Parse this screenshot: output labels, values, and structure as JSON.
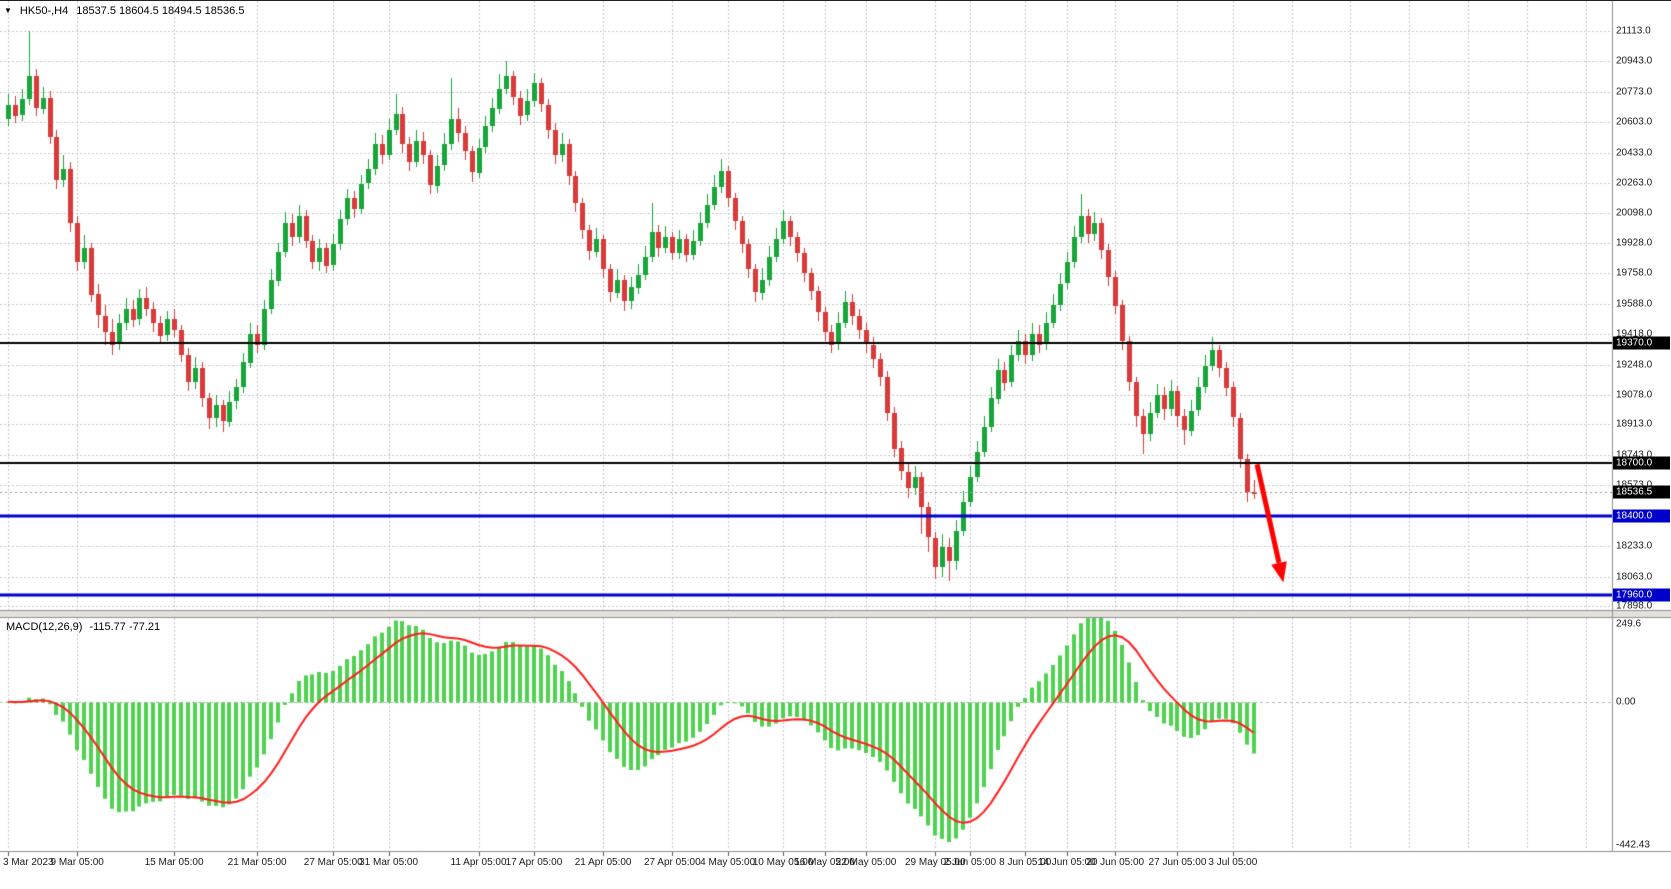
{
  "header": {
    "symbol": "HK50-,H4",
    "quote": "18537.5 18604.5 18494.5 18536.5",
    "dropdown_icon": "▼"
  },
  "macd": {
    "label": "MACD(12,26,9)",
    "values_text": "-115.77 -77.21"
  },
  "colors": {
    "background": "#ffffff",
    "grid": "#c8c8c8",
    "bull": "#18a53a",
    "bear": "#d93a3a",
    "macd_histogram": "#4fd24f",
    "macd_signal": "#ff1e1e",
    "level_black": "#000000",
    "level_blue": "#0000cc",
    "axis_text": "#1a1a1a",
    "separator": "#8f8f8f",
    "separator_fill": "#e4e1dc",
    "current_price_line": "#9a9a9a",
    "arrow": "#ff0000"
  },
  "chart_data": {
    "type": "candlestick",
    "symbol": "HK50",
    "timeframe": "H4",
    "current_bar": {
      "open": 18537.5,
      "high": 18604.5,
      "low": 18494.5,
      "close": 18536.5
    },
    "y_ticks": [
      {
        "value": 21113.0,
        "label": "21113.0"
      },
      {
        "value": 20943.0,
        "label": "20943.0"
      },
      {
        "value": 20773.0,
        "label": "20773.0"
      },
      {
        "value": 20603.0,
        "label": "20603.0"
      },
      {
        "value": 20433.0,
        "label": "20433.0"
      },
      {
        "value": 20263.0,
        "label": "20263.0"
      },
      {
        "value": 20098.0,
        "label": "20098.0"
      },
      {
        "value": 19928.0,
        "label": "19928.0"
      },
      {
        "value": 19758.0,
        "label": "19758.0"
      },
      {
        "value": 19588.0,
        "label": "19588.0"
      },
      {
        "value": 19418.0,
        "label": "19418.0"
      },
      {
        "value": 19248.0,
        "label": "19248.0"
      },
      {
        "value": 19078.0,
        "label": "19078.0"
      },
      {
        "value": 18913.0,
        "label": "18913.0"
      },
      {
        "value": 18743.0,
        "label": "18743.0"
      },
      {
        "value": 18573.0,
        "label": "18573.0"
      },
      {
        "value": 18403.0,
        "label": "18403.0"
      },
      {
        "value": 18233.0,
        "label": "18233.0"
      },
      {
        "value": 18063.0,
        "label": "18063.0"
      },
      {
        "value": 17898.0,
        "label": "17898.0"
      }
    ],
    "macd_ticks": [
      {
        "value": 249.6,
        "label": "249.6"
      },
      {
        "value": 0,
        "label": "0.00"
      },
      {
        "value": -442.43,
        "label": "-442.43"
      }
    ],
    "x_labels": [
      {
        "bar": 0,
        "label": "3 Mar 2023"
      },
      {
        "bar": 10,
        "label": "9 Mar 05:00"
      },
      {
        "bar": 24,
        "label": "15 Mar 05:00"
      },
      {
        "bar": 36,
        "label": "21 Mar 05:00"
      },
      {
        "bar": 47,
        "label": "27 Mar 05:00"
      },
      {
        "bar": 55,
        "label": "31 Mar 05:00"
      },
      {
        "bar": 68,
        "label": "11 Apr 05:00"
      },
      {
        "bar": 76,
        "label": "17 Apr 05:00"
      },
      {
        "bar": 86,
        "label": "21 Apr 05:00"
      },
      {
        "bar": 96,
        "label": "27 Apr 05:00"
      },
      {
        "bar": 104,
        "label": "4 May 05:00"
      },
      {
        "bar": 112,
        "label": "10 May 05:00"
      },
      {
        "bar": 118,
        "label": "16 May 05:00"
      },
      {
        "bar": 124,
        "label": "22 May 05:00"
      },
      {
        "bar": 134,
        "label": "29 May 05:00"
      },
      {
        "bar": 139,
        "label": "2 Jun 05:00"
      },
      {
        "bar": 147,
        "label": "8 Jun 05:00"
      },
      {
        "bar": 153,
        "label": "14 Jun 05:00"
      },
      {
        "bar": 160,
        "label": "20 Jun 05:00"
      },
      {
        "bar": 169,
        "label": "27 Jun 05:00"
      },
      {
        "bar": 177,
        "label": "3 Jul 05:00"
      }
    ],
    "indicator": {
      "name": "MACD",
      "fast": 12,
      "slow": 26,
      "signal_period": 9,
      "current_macd": -115.77,
      "current_signal": -77.21,
      "axis_max": 249.6,
      "axis_min": -442.43
    },
    "horizontal_levels": [
      {
        "price": 19370.0,
        "label": "19370.0",
        "style": "black"
      },
      {
        "price": 18700.0,
        "label": "18700.0",
        "style": "black"
      },
      {
        "price": 18400.0,
        "label": "18400.0",
        "style": "blue"
      },
      {
        "price": 17960.0,
        "label": "17960.0",
        "style": "blue"
      }
    ],
    "current_price": {
      "value": 18536.5,
      "label": "18536.5"
    },
    "trend_arrow": {
      "start_bar": 180.5,
      "start_price": 18690,
      "end_bar": 184.3,
      "end_price": 18030
    },
    "candles": [
      [
        20620,
        20760,
        20580,
        20700
      ],
      [
        20700,
        20750,
        20600,
        20640
      ],
      [
        20640,
        20790,
        20610,
        20730
      ],
      [
        20730,
        21113,
        20700,
        20860
      ],
      [
        20860,
        20900,
        20640,
        20680
      ],
      [
        20680,
        20800,
        20650,
        20740
      ],
      [
        20740,
        20780,
        20480,
        20520
      ],
      [
        20520,
        20560,
        20230,
        20280
      ],
      [
        20280,
        20420,
        20240,
        20340
      ],
      [
        20340,
        20380,
        19990,
        20040
      ],
      [
        20040,
        20080,
        19770,
        19820
      ],
      [
        19820,
        19970,
        19780,
        19900
      ],
      [
        19900,
        19930,
        19600,
        19640
      ],
      [
        19640,
        19700,
        19450,
        19520
      ],
      [
        19520,
        19580,
        19360,
        19430
      ],
      [
        19430,
        19500,
        19300,
        19360
      ],
      [
        19360,
        19530,
        19330,
        19480
      ],
      [
        19480,
        19620,
        19440,
        19560
      ],
      [
        19560,
        19610,
        19460,
        19500
      ],
      [
        19500,
        19670,
        19470,
        19620
      ],
      [
        19620,
        19680,
        19520,
        19560
      ],
      [
        19560,
        19600,
        19430,
        19480
      ],
      [
        19480,
        19520,
        19370,
        19410
      ],
      [
        19410,
        19550,
        19380,
        19500
      ],
      [
        19500,
        19560,
        19400,
        19440
      ],
      [
        19440,
        19470,
        19260,
        19300
      ],
      [
        19300,
        19340,
        19100,
        19150
      ],
      [
        19150,
        19290,
        19110,
        19230
      ],
      [
        19230,
        19260,
        19010,
        19060
      ],
      [
        19060,
        19090,
        18890,
        18950
      ],
      [
        18950,
        19080,
        18900,
        19020
      ],
      [
        19020,
        19050,
        18870,
        18930
      ],
      [
        18930,
        19100,
        18900,
        19040
      ],
      [
        19040,
        19170,
        19000,
        19120
      ],
      [
        19120,
        19310,
        19090,
        19260
      ],
      [
        19260,
        19480,
        19230,
        19420
      ],
      [
        19420,
        19470,
        19310,
        19360
      ],
      [
        19360,
        19610,
        19330,
        19560
      ],
      [
        19560,
        19780,
        19530,
        19720
      ],
      [
        19720,
        19930,
        19690,
        19880
      ],
      [
        19880,
        20100,
        19850,
        20040
      ],
      [
        20040,
        20090,
        19910,
        19960
      ],
      [
        19960,
        20140,
        19930,
        20080
      ],
      [
        20080,
        20110,
        19900,
        19940
      ],
      [
        19940,
        19970,
        19780,
        19820
      ],
      [
        19820,
        19950,
        19770,
        19900
      ],
      [
        19900,
        19930,
        19760,
        19800
      ],
      [
        19800,
        19980,
        19770,
        19920
      ],
      [
        19920,
        20110,
        19890,
        20060
      ],
      [
        20060,
        20230,
        20030,
        20180
      ],
      [
        20180,
        20220,
        20070,
        20120
      ],
      [
        20120,
        20310,
        20090,
        20260
      ],
      [
        20260,
        20400,
        20230,
        20340
      ],
      [
        20340,
        20540,
        20310,
        20480
      ],
      [
        20480,
        20530,
        20370,
        20420
      ],
      [
        20420,
        20620,
        20390,
        20560
      ],
      [
        20560,
        20760,
        20530,
        20650
      ],
      [
        20650,
        20690,
        20430,
        20480
      ],
      [
        20480,
        20520,
        20330,
        20380
      ],
      [
        20380,
        20560,
        20350,
        20500
      ],
      [
        20500,
        20550,
        20370,
        20420
      ],
      [
        20420,
        20450,
        20200,
        20250
      ],
      [
        20250,
        20420,
        20210,
        20360
      ],
      [
        20360,
        20540,
        20330,
        20480
      ],
      [
        20480,
        20850,
        20450,
        20620
      ],
      [
        20620,
        20680,
        20490,
        20540
      ],
      [
        20540,
        20580,
        20390,
        20440
      ],
      [
        20440,
        20470,
        20270,
        20320
      ],
      [
        20320,
        20510,
        20290,
        20460
      ],
      [
        20460,
        20640,
        20430,
        20580
      ],
      [
        20580,
        20740,
        20550,
        20680
      ],
      [
        20680,
        20870,
        20650,
        20790
      ],
      [
        20790,
        20943,
        20760,
        20860
      ],
      [
        20860,
        20890,
        20700,
        20740
      ],
      [
        20740,
        20780,
        20590,
        20640
      ],
      [
        20640,
        20790,
        20610,
        20720
      ],
      [
        20720,
        20880,
        20690,
        20820
      ],
      [
        20820,
        20850,
        20660,
        20700
      ],
      [
        20700,
        20730,
        20510,
        20560
      ],
      [
        20560,
        20600,
        20370,
        20420
      ],
      [
        20420,
        20540,
        20380,
        20480
      ],
      [
        20480,
        20510,
        20250,
        20300
      ],
      [
        20300,
        20330,
        20100,
        20150
      ],
      [
        20150,
        20180,
        19950,
        20000
      ],
      [
        20000,
        20030,
        19830,
        19880
      ],
      [
        19880,
        20010,
        19850,
        19950
      ],
      [
        19950,
        19970,
        19730,
        19780
      ],
      [
        19780,
        19810,
        19600,
        19650
      ],
      [
        19650,
        19780,
        19620,
        19720
      ],
      [
        19720,
        19750,
        19550,
        19600
      ],
      [
        19600,
        19740,
        19560,
        19680
      ],
      [
        19680,
        19810,
        19640,
        19750
      ],
      [
        19750,
        19910,
        19720,
        19850
      ],
      [
        19850,
        20150,
        19820,
        19990
      ],
      [
        19990,
        20030,
        19850,
        19900
      ],
      [
        19900,
        20020,
        19870,
        19960
      ],
      [
        19960,
        19990,
        19830,
        19870
      ],
      [
        19870,
        20000,
        19840,
        19950
      ],
      [
        19950,
        19980,
        19820,
        19860
      ],
      [
        19860,
        20000,
        19830,
        19940
      ],
      [
        19940,
        20100,
        19910,
        20040
      ],
      [
        20040,
        20200,
        20010,
        20140
      ],
      [
        20140,
        20310,
        20110,
        20240
      ],
      [
        20240,
        20400,
        20210,
        20330
      ],
      [
        20330,
        20360,
        20130,
        20180
      ],
      [
        20180,
        20210,
        20000,
        20050
      ],
      [
        20050,
        20080,
        19870,
        19920
      ],
      [
        19920,
        19950,
        19730,
        19780
      ],
      [
        19780,
        19810,
        19600,
        19650
      ],
      [
        19650,
        19790,
        19610,
        19720
      ],
      [
        19720,
        19910,
        19690,
        19850
      ],
      [
        19850,
        20010,
        19820,
        19950
      ],
      [
        19950,
        20110,
        19920,
        20050
      ],
      [
        20050,
        20080,
        19910,
        19960
      ],
      [
        19960,
        19990,
        19820,
        19870
      ],
      [
        19870,
        19900,
        19710,
        19760
      ],
      [
        19760,
        19790,
        19610,
        19660
      ],
      [
        19660,
        19690,
        19490,
        19540
      ],
      [
        19540,
        19570,
        19380,
        19430
      ],
      [
        19430,
        19470,
        19310,
        19360
      ],
      [
        19360,
        19540,
        19330,
        19480
      ],
      [
        19480,
        19660,
        19450,
        19600
      ],
      [
        19600,
        19640,
        19470,
        19520
      ],
      [
        19520,
        19560,
        19390,
        19440
      ],
      [
        19440,
        19480,
        19310,
        19360
      ],
      [
        19360,
        19400,
        19230,
        19280
      ],
      [
        19280,
        19310,
        19130,
        19180
      ],
      [
        19180,
        19210,
        18930,
        18980
      ],
      [
        18980,
        19010,
        18730,
        18780
      ],
      [
        18780,
        18820,
        18600,
        18650
      ],
      [
        18650,
        18700,
        18500,
        18560
      ],
      [
        18560,
        18680,
        18520,
        18620
      ],
      [
        18620,
        18650,
        18300,
        18450
      ],
      [
        18450,
        18480,
        18200,
        18280
      ],
      [
        18280,
        18310,
        18050,
        18120
      ],
      [
        18120,
        18300,
        18060,
        18230
      ],
      [
        18230,
        18280,
        18040,
        18150
      ],
      [
        18150,
        18380,
        18100,
        18320
      ],
      [
        18320,
        18540,
        18290,
        18480
      ],
      [
        18480,
        18680,
        18450,
        18620
      ],
      [
        18620,
        18820,
        18590,
        18760
      ],
      [
        18760,
        18960,
        18730,
        18900
      ],
      [
        18900,
        19120,
        18870,
        19060
      ],
      [
        19060,
        19280,
        19030,
        19220
      ],
      [
        19220,
        19260,
        19100,
        19150
      ],
      [
        19150,
        19360,
        19120,
        19300
      ],
      [
        19300,
        19440,
        19270,
        19380
      ],
      [
        19380,
        19420,
        19250,
        19300
      ],
      [
        19300,
        19480,
        19270,
        19420
      ],
      [
        19420,
        19470,
        19310,
        19360
      ],
      [
        19360,
        19540,
        19330,
        19480
      ],
      [
        19480,
        19640,
        19450,
        19580
      ],
      [
        19580,
        19760,
        19550,
        19700
      ],
      [
        19700,
        19880,
        19670,
        19820
      ],
      [
        19820,
        20020,
        19790,
        19960
      ],
      [
        19960,
        20200,
        19930,
        20080
      ],
      [
        20080,
        20120,
        19930,
        19980
      ],
      [
        19980,
        20100,
        19940,
        20040
      ],
      [
        20040,
        20070,
        19840,
        19890
      ],
      [
        19890,
        19920,
        19690,
        19740
      ],
      [
        19740,
        19770,
        19530,
        19580
      ],
      [
        19580,
        19610,
        19330,
        19380
      ],
      [
        19380,
        19410,
        19100,
        19150
      ],
      [
        19150,
        19180,
        18900,
        18960
      ],
      [
        18960,
        19000,
        18750,
        18860
      ],
      [
        18860,
        19040,
        18820,
        18980
      ],
      [
        18980,
        19140,
        18950,
        19080
      ],
      [
        19080,
        19120,
        18940,
        19000
      ],
      [
        19000,
        19160,
        18960,
        19100
      ],
      [
        19100,
        19130,
        18900,
        18960
      ],
      [
        18960,
        19000,
        18800,
        18880
      ],
      [
        18880,
        19050,
        18850,
        18990
      ],
      [
        18990,
        19180,
        18960,
        19120
      ],
      [
        19120,
        19300,
        19090,
        19240
      ],
      [
        19240,
        19400,
        19210,
        19330
      ],
      [
        19330,
        19360,
        19180,
        19230
      ],
      [
        19230,
        19260,
        19070,
        19120
      ],
      [
        19120,
        19150,
        18900,
        18950
      ],
      [
        18950,
        18980,
        18670,
        18720
      ],
      [
        18720,
        18750,
        18480,
        18537.5
      ],
      [
        18537.5,
        18604.5,
        18494.5,
        18536.5
      ]
    ]
  }
}
